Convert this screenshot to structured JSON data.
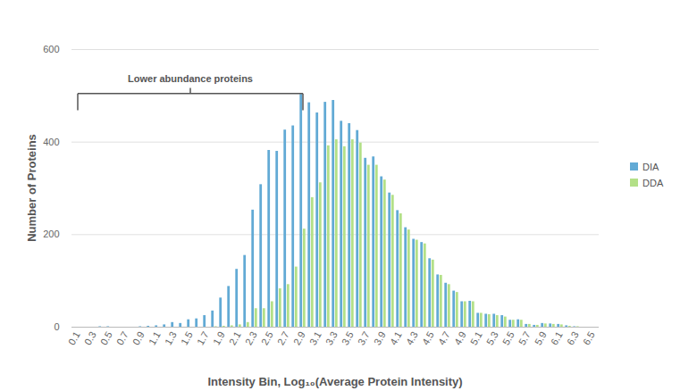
{
  "chart_data": {
    "type": "bar",
    "x_label": "Intensity Bin, Log₁₀(Average Protein Intensity)",
    "y_label": "Number of Proteins",
    "categories": [
      "0.1",
      null,
      "0.3",
      null,
      "0.5",
      null,
      "0.7",
      null,
      "0.9",
      null,
      "1.1",
      null,
      "1.3",
      null,
      "1.5",
      null,
      "1.7",
      null,
      "1.9",
      null,
      "2.1",
      null,
      "2.3",
      null,
      "2.5",
      null,
      "2.7",
      null,
      "2.9",
      null,
      "3.1",
      null,
      "3.3",
      null,
      "3.5",
      null,
      "3.7",
      null,
      "3.9",
      null,
      "4.1",
      null,
      "4.3",
      null,
      "4.5",
      null,
      "4.7",
      null,
      "4.9",
      null,
      "5.1",
      null,
      "5.3",
      null,
      "5.5",
      null,
      "5.7",
      null,
      "5.9",
      null,
      "6.1",
      null,
      "6.3",
      null,
      "6.5"
    ],
    "series": [
      {
        "name": "DIA",
        "color": "#62aad5",
        "values": [
          0,
          0,
          0,
          1,
          1,
          0,
          0,
          0,
          1,
          2,
          3,
          5,
          10,
          8,
          16,
          18,
          25,
          35,
          63,
          88,
          125,
          155,
          253,
          308,
          382,
          380,
          426,
          435,
          503,
          485,
          463,
          486,
          490,
          445,
          440,
          425,
          365,
          368,
          325,
          290,
          252,
          215,
          190,
          183,
          148,
          113,
          95,
          78,
          55,
          56,
          30,
          28,
          28,
          25,
          15,
          16,
          6,
          4,
          8,
          7,
          6,
          3,
          1,
          0,
          0
        ]
      },
      {
        "name": "DDA",
        "color": "#b3e087",
        "values": [
          0,
          0,
          0,
          0,
          0,
          0,
          0,
          0,
          0,
          0,
          0,
          0,
          0,
          0,
          0,
          0,
          0,
          1,
          2,
          3,
          5,
          10,
          40,
          40,
          55,
          83,
          92,
          130,
          212,
          280,
          312,
          392,
          405,
          390,
          405,
          398,
          350,
          350,
          318,
          285,
          245,
          210,
          188,
          180,
          145,
          112,
          92,
          75,
          55,
          55,
          30,
          27,
          25,
          22,
          15,
          15,
          6,
          4,
          7,
          6,
          5,
          2,
          1,
          0,
          0
        ]
      }
    ],
    "ylim": [
      0,
      600
    ],
    "yticks": [
      0,
      200,
      400,
      600
    ],
    "grid": true,
    "legend": "right",
    "annotations": [
      {
        "text": "Lower abundance proteins",
        "from": "0.1",
        "to": "2.9",
        "y": 505
      }
    ]
  }
}
